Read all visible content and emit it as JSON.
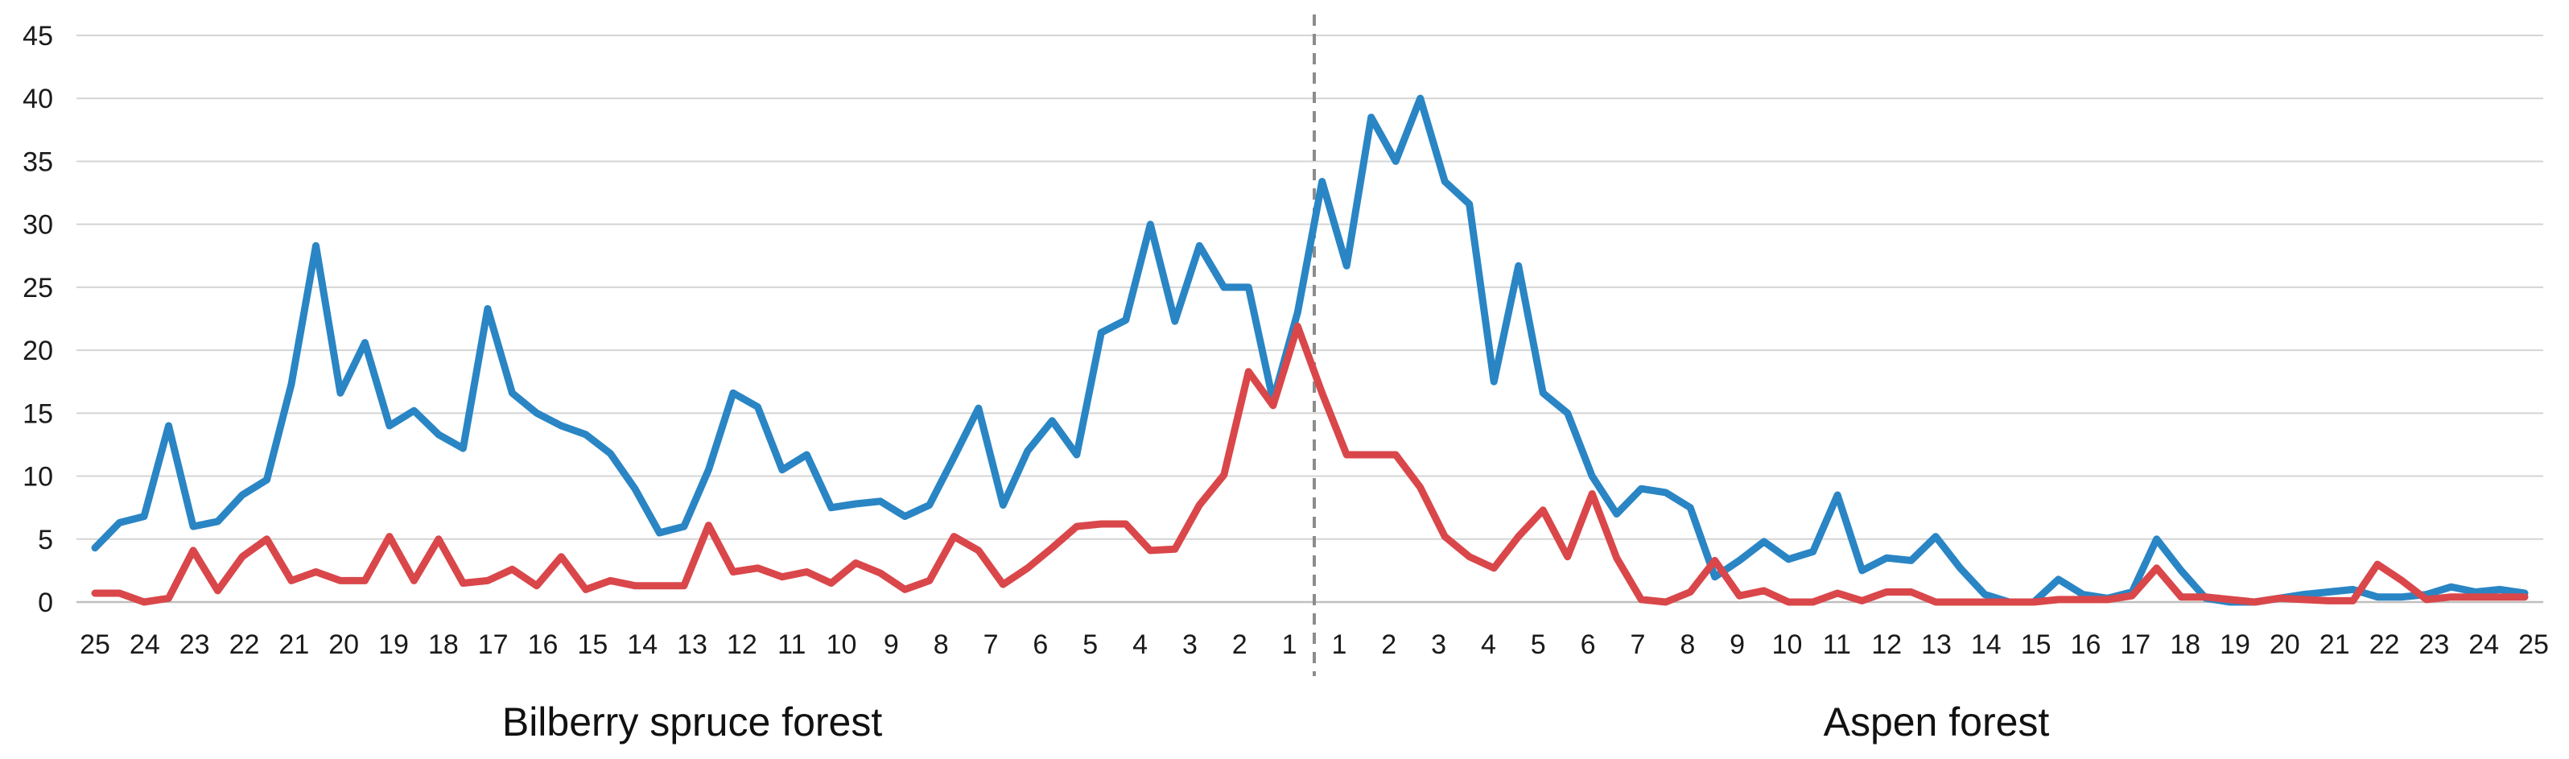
{
  "chart_data": {
    "type": "line",
    "ylim": [
      0,
      45
    ],
    "yticks": [
      0,
      5,
      10,
      15,
      20,
      25,
      30,
      35,
      40,
      45
    ],
    "grid": true,
    "xtick_labels": [
      "25",
      "24",
      "23",
      "22",
      "21",
      "20",
      "19",
      "18",
      "17",
      "16",
      "15",
      "14",
      "13",
      "12",
      "11",
      "10",
      "9",
      "8",
      "7",
      "6",
      "5",
      "4",
      "3",
      "2",
      "1",
      "1",
      "2",
      "3",
      "4",
      "5",
      "6",
      "7",
      "8",
      "9",
      "10",
      "11",
      "12",
      "13",
      "14",
      "15",
      "16",
      "17",
      "18",
      "19",
      "20",
      "21",
      "22",
      "23",
      "24",
      "25"
    ],
    "regions": [
      {
        "label": "Bilberry spruce forest",
        "from_tick": 0,
        "to_tick": 24
      },
      {
        "label": "Aspen forest",
        "from_tick": 25,
        "to_tick": 49
      }
    ],
    "divider_between_ticks": [
      24,
      25
    ],
    "series": [
      {
        "color": "#2a85c4",
        "values": [
          4.3,
          6.3,
          6.8,
          14.0,
          6.0,
          6.4,
          8.5,
          9.7,
          17.3,
          28.3,
          16.6,
          20.6,
          14.0,
          15.2,
          13.3,
          12.2,
          23.3,
          16.6,
          15.0,
          14.0,
          13.3,
          11.8,
          9.0,
          5.5,
          6.0,
          10.5,
          16.6,
          15.5,
          10.5,
          11.7,
          7.5,
          7.8,
          8.0,
          6.8,
          7.7,
          11.5,
          15.4,
          7.7,
          12.0,
          14.4,
          11.7,
          21.4,
          22.4,
          30.0,
          22.3,
          28.3,
          25.0,
          25.0,
          16.0,
          23.0,
          33.4,
          26.7,
          38.5,
          35.0,
          40.0,
          33.4,
          31.6,
          17.5,
          26.7,
          16.6,
          15.0,
          10.0,
          7.0,
          9.0,
          8.7,
          7.5,
          2.0,
          3.3,
          4.8,
          3.4,
          4.0,
          8.5,
          2.5,
          3.5,
          3.3,
          5.2,
          2.7,
          0.6,
          0.0,
          0.0,
          1.8,
          0.6,
          0.3,
          0.8,
          5.0,
          2.5,
          0.3,
          0.0,
          0.0,
          0.3,
          0.6,
          0.8,
          1.0,
          0.4,
          0.4,
          0.6,
          1.2,
          0.8,
          1.0,
          0.7
        ]
      },
      {
        "color": "#d9474a",
        "values": [
          0.7,
          0.7,
          0.0,
          0.3,
          4.1,
          0.9,
          3.6,
          5.0,
          1.7,
          2.4,
          1.7,
          1.7,
          5.2,
          1.7,
          5.0,
          1.5,
          1.7,
          2.6,
          1.3,
          3.6,
          1.0,
          1.7,
          1.3,
          1.3,
          1.3,
          6.1,
          2.4,
          2.7,
          2.0,
          2.4,
          1.5,
          3.1,
          2.3,
          1.0,
          1.7,
          5.2,
          4.1,
          1.4,
          2.7,
          4.3,
          6.0,
          6.2,
          6.2,
          4.1,
          4.2,
          7.7,
          10.1,
          18.3,
          15.6,
          21.9,
          16.6,
          11.7,
          11.7,
          11.7,
          9.1,
          5.2,
          3.6,
          2.7,
          5.2,
          7.3,
          3.6,
          8.6,
          3.5,
          0.2,
          0.0,
          0.8,
          3.3,
          0.5,
          0.9,
          0.0,
          0.0,
          0.7,
          0.1,
          0.8,
          0.8,
          0.0,
          0.0,
          0.0,
          0.0,
          0.0,
          0.2,
          0.2,
          0.2,
          0.5,
          2.7,
          0.4,
          0.4,
          0.2,
          0.0,
          0.3,
          0.2,
          0.1,
          0.1,
          3.0,
          1.7,
          0.2,
          0.4,
          0.4,
          0.4,
          0.4
        ]
      }
    ]
  }
}
